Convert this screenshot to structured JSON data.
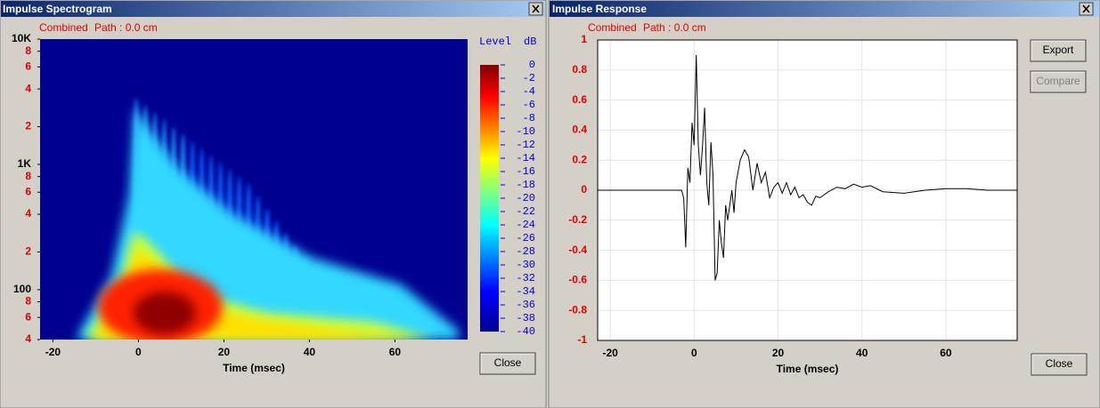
{
  "windows": [
    {
      "title": "Impulse Spectrogram",
      "buttons": [
        "Close"
      ]
    },
    {
      "title": "Impulse Response",
      "buttons": [
        "Export",
        "Compare",
        "Close"
      ]
    }
  ],
  "chart_data": [
    {
      "type": "heatmap",
      "series_name": "Combined",
      "subtitle": "Path : 0.0 cm",
      "xlabel": "Time (msec)",
      "xlim": [
        -23,
        77
      ],
      "xticks": [
        -20,
        0,
        20,
        40,
        60
      ],
      "ylim": [
        40,
        10000
      ],
      "log_y": true,
      "yticks": [
        {
          "value": 10000,
          "label": "10K"
        },
        {
          "value": 8000,
          "label": "8"
        },
        {
          "value": 6000,
          "label": "6"
        },
        {
          "value": 4000,
          "label": "4"
        },
        {
          "value": 2000,
          "label": "2"
        },
        {
          "value": 1000,
          "label": "1K"
        },
        {
          "value": 800,
          "label": "8"
        },
        {
          "value": 600,
          "label": "6"
        },
        {
          "value": 400,
          "label": "4"
        },
        {
          "value": 200,
          "label": "2"
        },
        100,
        {
          "value": 80,
          "label": "8"
        },
        {
          "value": 60,
          "label": "6"
        },
        {
          "value": 40,
          "label": "4"
        }
      ],
      "colorbar": {
        "title": "Level",
        "unit": "dB",
        "lim": [
          0,
          -40
        ],
        "ticks": [
          0,
          -2,
          -4,
          -6,
          -8,
          -10,
          -12,
          -14,
          -16,
          -18,
          -20,
          -22,
          -24,
          -26,
          -28,
          -30,
          -32,
          -34,
          -36,
          -38,
          -40
        ]
      }
    },
    {
      "type": "line",
      "subtitle": "Path : 0.0 cm",
      "xlabel": "Time (msec)",
      "grid": true,
      "xlim": [
        -23,
        77
      ],
      "xticks": [
        -20,
        0,
        20,
        40,
        60
      ],
      "ylim": [
        -1,
        1
      ],
      "yticks": [
        1,
        0.8,
        0.6,
        0.4,
        0.2,
        0,
        -0.2,
        -0.4,
        -0.6,
        -0.8,
        -1
      ],
      "x": [
        -23,
        -3,
        -2.5,
        -2,
        -1.5,
        -1,
        -0.5,
        0,
        0.5,
        1,
        1.5,
        2,
        2.5,
        3,
        3.5,
        4,
        4.5,
        5,
        5.5,
        6,
        6.5,
        7,
        7.5,
        8,
        9,
        9.5,
        10,
        11,
        12,
        13,
        14,
        15,
        16,
        17,
        18,
        19,
        20,
        21,
        22,
        23,
        24,
        25,
        26,
        27,
        28,
        29,
        30,
        32,
        34,
        36,
        38,
        40,
        42,
        45,
        50,
        55,
        60,
        65,
        70,
        77
      ],
      "series": [
        {
          "name": "Combined",
          "color": "#000000",
          "values": [
            0,
            0,
            -0.05,
            -0.38,
            0.15,
            0.05,
            0.45,
            0.3,
            0.9,
            0.3,
            0.1,
            0.3,
            0.55,
            0.05,
            -0.1,
            0.32,
            0.1,
            -0.6,
            -0.55,
            -0.2,
            -0.35,
            -0.45,
            -0.1,
            -0.2,
            0,
            -0.15,
            0.05,
            0.2,
            0.27,
            0.22,
            0,
            0.18,
            0.05,
            0.12,
            -0.05,
            0.02,
            0.05,
            -0.02,
            0.05,
            -0.03,
            0.02,
            -0.05,
            -0.03,
            -0.08,
            -0.1,
            -0.04,
            -0.05,
            -0.01,
            0.02,
            0.01,
            0.04,
            0.02,
            0.03,
            -0.01,
            -0.02,
            0,
            0.01,
            0.01,
            0,
            0
          ]
        }
      ]
    }
  ]
}
